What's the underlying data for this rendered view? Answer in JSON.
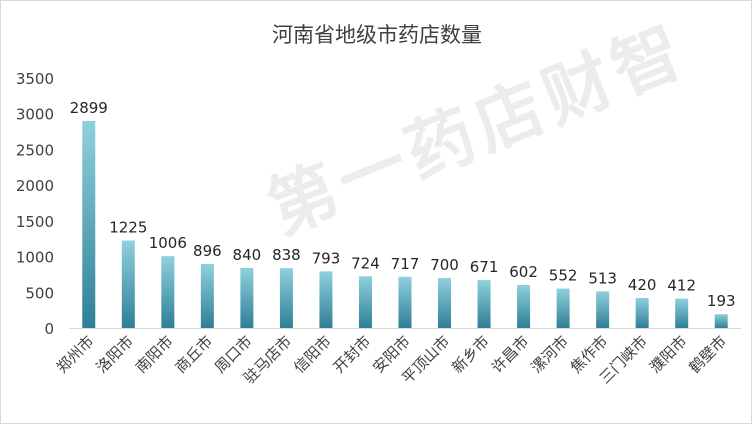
{
  "chart_data": {
    "type": "bar",
    "title": "河南省地级市药店数量",
    "categories": [
      "郑州市",
      "洛阳市",
      "南阳市",
      "商丘市",
      "周口市",
      "驻马店市",
      "信阳市",
      "开封市",
      "安阳市",
      "平顶山市",
      "新乡市",
      "许昌市",
      "漯河市",
      "焦作市",
      "三门峡市",
      "濮阳市",
      "鹤壁市"
    ],
    "values": [
      2899,
      1225,
      1006,
      896,
      840,
      838,
      793,
      724,
      717,
      700,
      671,
      602,
      552,
      513,
      420,
      412,
      193
    ],
    "ylim": [
      0,
      3500
    ],
    "yticks": [
      0,
      500,
      1000,
      1500,
      2000,
      2500,
      3000,
      3500
    ],
    "xlabel": "",
    "ylabel": "",
    "grid": false,
    "legend": "none",
    "bar_color_top": "#8fd0de",
    "bar_color_bottom": "#2e7f96"
  },
  "watermark": "第一药店财智"
}
